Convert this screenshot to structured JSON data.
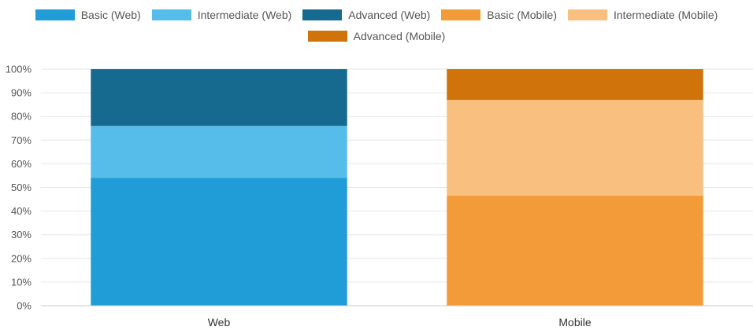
{
  "chart_data": {
    "type": "bar",
    "stacked": true,
    "percent_stacked": true,
    "categories": [
      "Web",
      "Mobile"
    ],
    "series": [
      {
        "name": "Basic (Web)",
        "color": "#209dd7",
        "values": [
          54,
          0
        ]
      },
      {
        "name": "Intermediate (Web)",
        "color": "#56bce9",
        "values": [
          22,
          0
        ]
      },
      {
        "name": "Advanced (Web)",
        "color": "#166a8f",
        "values": [
          24,
          0
        ]
      },
      {
        "name": "Basic (Mobile)",
        "color": "#f29b38",
        "values": [
          0,
          46.5
        ]
      },
      {
        "name": "Intermediate (Mobile)",
        "color": "#f8bf7f",
        "values": [
          0,
          40.5
        ]
      },
      {
        "name": "Advanced (Mobile)",
        "color": "#d0730b",
        "values": [
          0,
          13
        ]
      }
    ],
    "y_ticks": [
      "0%",
      "10%",
      "20%",
      "30%",
      "40%",
      "50%",
      "60%",
      "70%",
      "80%",
      "90%",
      "100%"
    ],
    "ylim": [
      0,
      100
    ],
    "grid": true,
    "legend_position": "top",
    "title": "",
    "xlabel": "",
    "ylabel": ""
  }
}
